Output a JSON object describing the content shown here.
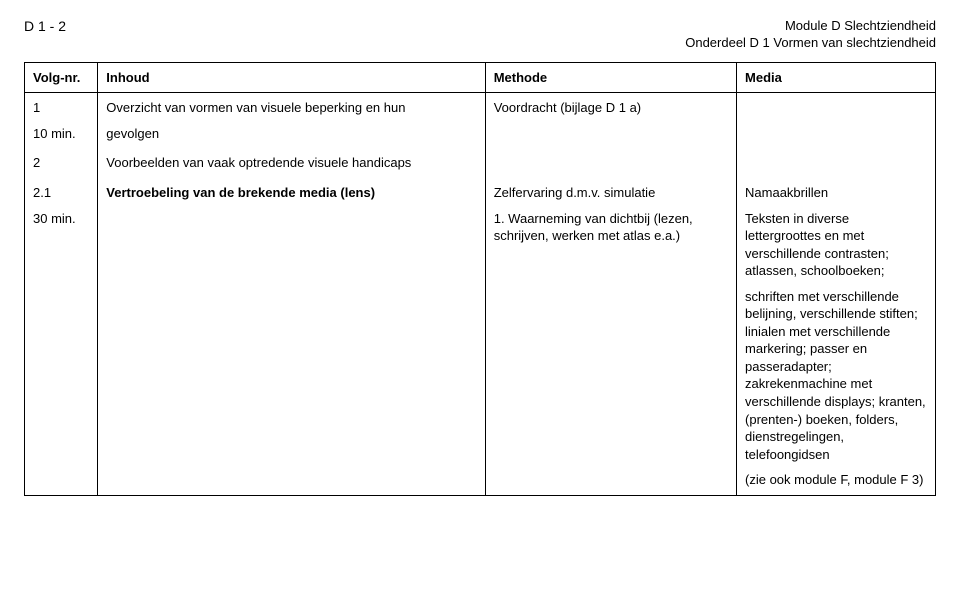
{
  "header": {
    "left": "D 1 - 2",
    "right_line1": "Module D Slechtziendheid",
    "right_line2": "Onderdeel D 1 Vormen van slechtziendheid"
  },
  "columns": {
    "volg": "Volg-nr.",
    "inhoud": "Inhoud",
    "methode": "Methode",
    "media": "Media"
  },
  "rows": {
    "r1": {
      "volg_line1": "1",
      "volg_line2": "10 min.",
      "inhoud_line1": "Overzicht van vormen van visuele beperking en hun",
      "inhoud_line2": "gevolgen",
      "methode": "Voordracht (bijlage D 1 a)",
      "media": ""
    },
    "r2": {
      "volg": "2",
      "inhoud": "Voorbeelden van vaak optredende visuele handicaps",
      "methode": "",
      "media": ""
    },
    "r3": {
      "volg_line1": "2.1",
      "volg_line2": "30 min.",
      "inhoud": "Vertroebeling van de brekende media (lens)",
      "methode_line1": "Zelfervaring d.m.v. simulatie",
      "methode_line2": "1. Waarneming van dichtbij (lezen, schrijven, werken met atlas e.a.)",
      "media_line1": "Namaakbrillen",
      "media_p2": "Teksten in diverse lettergroottes en met verschillende contrasten; atlassen, schoolboeken;",
      "media_p3": "schriften met verschillende belijning, verschillende stiften; linialen met verschillende markering; passer en passeradapter; zakrekenmachine met verschillende displays; kranten, (prenten-) boeken, folders, dienstregelingen, telefoongidsen",
      "media_p4": "(zie ook module F, module F 3)"
    }
  }
}
